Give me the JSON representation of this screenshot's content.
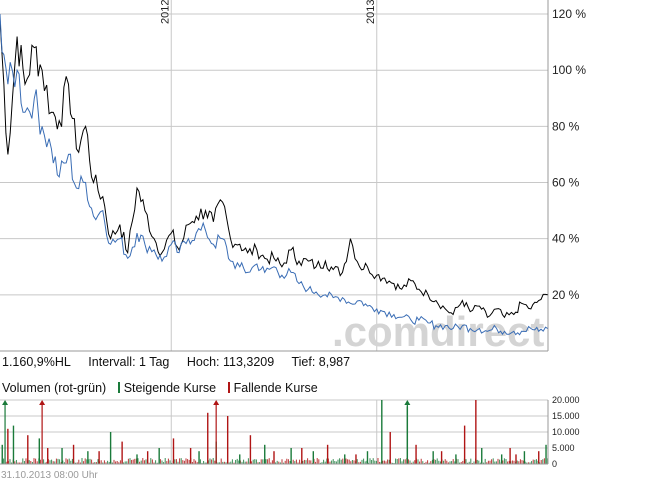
{
  "info": {
    "change": "1.160,9%HL",
    "interval": "Intervall: 1 Tag",
    "high": "Hoch: 113,3209",
    "low": "Tief:  8,987"
  },
  "legend": {
    "title": "Volumen (rot-grün)",
    "rising": "Steigende Kurse",
    "falling": "Fallende Kurse"
  },
  "timestamp": "31.10.2013 08:00 Uhr",
  "watermark": ".comdirect",
  "colors": {
    "price_line": "#000000",
    "compare_line": "#3a6db5",
    "rising": "#1a7a3a",
    "falling": "#b01515",
    "grid": "#c8c8c8"
  },
  "chart_data": [
    {
      "type": "line",
      "y_unit": "%",
      "ylim": [
        0,
        125
      ],
      "y_ticks": [
        "20 %",
        "40 %",
        "60 %",
        "80 %",
        "100 %",
        "120 %"
      ],
      "y_tick_values": [
        20,
        40,
        60,
        80,
        100,
        120
      ],
      "x_range": [
        "2011-03",
        "2013-11"
      ],
      "x_tick_labels": [
        "2012",
        "2013"
      ],
      "x_tick_dates": [
        "2012-01",
        "2013-01"
      ],
      "grid": true,
      "series": [
        {
          "color": "#000000",
          "x": [
            "2011-03-01",
            "2011-03-15",
            "2011-04-01",
            "2011-04-15",
            "2011-05-01",
            "2011-05-15",
            "2011-06-01",
            "2011-06-15",
            "2011-07-01",
            "2011-07-15",
            "2011-08-01",
            "2011-08-15",
            "2011-09-01",
            "2011-09-15",
            "2011-10-01",
            "2011-10-15",
            "2011-11-01",
            "2011-11-15",
            "2011-12-01",
            "2011-12-15",
            "2012-01-01",
            "2012-01-15",
            "2012-02-01",
            "2012-02-15",
            "2012-03-01",
            "2012-03-15",
            "2012-04-01",
            "2012-04-15",
            "2012-05-01",
            "2012-05-15",
            "2012-06-01",
            "2012-06-15",
            "2012-07-01",
            "2012-07-15",
            "2012-08-01",
            "2012-08-15",
            "2012-09-01",
            "2012-09-15",
            "2012-10-01",
            "2012-10-15",
            "2012-11-01",
            "2012-11-15",
            "2012-12-01",
            "2012-12-15",
            "2013-01-01",
            "2013-01-15",
            "2013-02-01",
            "2013-02-15",
            "2013-03-01",
            "2013-03-15",
            "2013-04-01",
            "2013-04-15",
            "2013-05-01",
            "2013-05-15",
            "2013-06-01",
            "2013-06-15",
            "2013-07-01",
            "2013-07-15",
            "2013-08-01",
            "2013-08-15",
            "2013-09-01",
            "2013-09-15",
            "2013-10-01",
            "2013-10-15",
            "2013-10-31"
          ],
          "y": [
            118,
            70,
            112,
            95,
            108,
            100,
            85,
            82,
            95,
            72,
            80,
            60,
            55,
            40,
            45,
            35,
            58,
            50,
            40,
            35,
            42,
            36,
            45,
            48,
            50,
            46,
            53,
            40,
            38,
            35,
            36,
            33,
            33,
            30,
            36,
            32,
            32,
            30,
            32,
            29,
            28,
            40,
            30,
            30,
            27,
            26,
            24,
            22,
            25,
            22,
            20,
            18,
            15,
            13,
            18,
            14,
            16,
            12,
            15,
            12,
            13,
            17,
            15,
            18,
            20
          ]
        },
        {
          "color": "#3a6db5",
          "x": [
            "2011-03-01",
            "2011-03-15",
            "2011-04-01",
            "2011-04-15",
            "2011-05-01",
            "2011-05-15",
            "2011-06-01",
            "2011-06-15",
            "2011-07-01",
            "2011-07-15",
            "2011-08-01",
            "2011-08-15",
            "2011-09-01",
            "2011-09-15",
            "2011-10-01",
            "2011-10-15",
            "2011-11-01",
            "2011-11-15",
            "2011-12-01",
            "2011-12-15",
            "2012-01-01",
            "2012-01-15",
            "2012-02-01",
            "2012-02-15",
            "2012-03-01",
            "2012-03-15",
            "2012-04-01",
            "2012-04-15",
            "2012-05-01",
            "2012-05-15",
            "2012-06-01",
            "2012-06-15",
            "2012-07-01",
            "2012-07-15",
            "2012-08-01",
            "2012-08-15",
            "2012-09-01",
            "2012-09-15",
            "2012-10-01",
            "2012-10-15",
            "2012-11-01",
            "2012-11-15",
            "2012-12-01",
            "2012-12-15",
            "2013-01-01",
            "2013-01-15",
            "2013-02-01",
            "2013-02-15",
            "2013-03-01",
            "2013-03-15",
            "2013-04-01",
            "2013-04-15",
            "2013-05-01",
            "2013-05-15",
            "2013-06-01",
            "2013-06-15",
            "2013-07-01",
            "2013-07-15",
            "2013-08-01",
            "2013-08-15",
            "2013-09-01",
            "2013-09-15",
            "2013-10-01",
            "2013-10-15",
            "2013-10-31"
          ],
          "y": [
            120,
            95,
            100,
            85,
            90,
            80,
            72,
            62,
            70,
            58,
            60,
            48,
            50,
            38,
            40,
            33,
            42,
            38,
            36,
            32,
            38,
            35,
            40,
            42,
            43,
            38,
            40,
            32,
            30,
            28,
            31,
            28,
            30,
            27,
            28,
            24,
            22,
            21,
            20,
            19,
            19,
            17,
            18,
            16,
            15,
            14,
            13,
            12,
            11,
            11,
            10,
            9,
            9,
            8,
            9,
            8,
            8,
            7,
            8,
            7,
            7,
            7,
            8,
            7,
            8
          ]
        }
      ]
    },
    {
      "type": "bar",
      "title": "Volumen (rot-grün)",
      "ylim": [
        0,
        20000
      ],
      "y_ticks": [
        "0",
        "5.000",
        "10.000",
        "15.000",
        "20.000"
      ],
      "y_tick_values": [
        0,
        5000,
        10000,
        15000,
        20000
      ],
      "x_range": [
        "2011-03",
        "2013-11"
      ],
      "x_tick_dates": [
        "2012-01",
        "2013-01"
      ],
      "series": [
        {
          "name": "Steigende Kurse",
          "color": "#1a7a3a",
          "x": [
            "2011-03-05",
            "2011-03-25",
            "2011-05-10",
            "2011-06-20",
            "2011-08-05",
            "2011-09-15",
            "2011-11-01",
            "2011-12-10",
            "2012-02-20",
            "2012-03-20",
            "2012-05-01",
            "2012-06-15",
            "2012-08-01",
            "2012-09-10",
            "2012-11-05",
            "2012-12-15",
            "2013-01-10",
            "2013-02-25",
            "2013-04-10",
            "2013-05-20",
            "2013-07-05",
            "2013-08-10",
            "2013-09-20",
            "2013-10-28"
          ],
          "y": [
            6000,
            12000,
            8000,
            5000,
            4000,
            10000,
            3000,
            5000,
            4000,
            7000,
            3000,
            6000,
            5000,
            4000,
            3000,
            4000,
            20000,
            18000,
            4000,
            3000,
            5000,
            3000,
            4000,
            6000
          ]
        },
        {
          "name": "Fallende Kurse",
          "color": "#b01515",
          "x": [
            "2011-03-15",
            "2011-04-20",
            "2011-05-25",
            "2011-07-10",
            "2011-08-25",
            "2011-10-05",
            "2011-11-20",
            "2012-01-05",
            "2012-02-05",
            "2012-03-05",
            "2012-04-10",
            "2012-05-20",
            "2012-07-01",
            "2012-08-20",
            "2012-10-05",
            "2012-11-25",
            "2013-01-25",
            "2013-03-10",
            "2013-04-25",
            "2013-06-05",
            "2013-06-25",
            "2013-08-25",
            "2013-09-05",
            "2013-10-15"
          ],
          "y": [
            11000,
            9000,
            5000,
            6000,
            4000,
            7000,
            4000,
            8000,
            5000,
            16000,
            15000,
            9000,
            4000,
            5000,
            6000,
            3000,
            10000,
            6000,
            4000,
            12000,
            20000,
            5000,
            3000,
            4000
          ]
        }
      ],
      "markers": {
        "rising": [
          "2011-03-10",
          "2013-02-25"
        ],
        "falling": [
          "2011-05-15",
          "2012-03-20"
        ]
      }
    }
  ]
}
